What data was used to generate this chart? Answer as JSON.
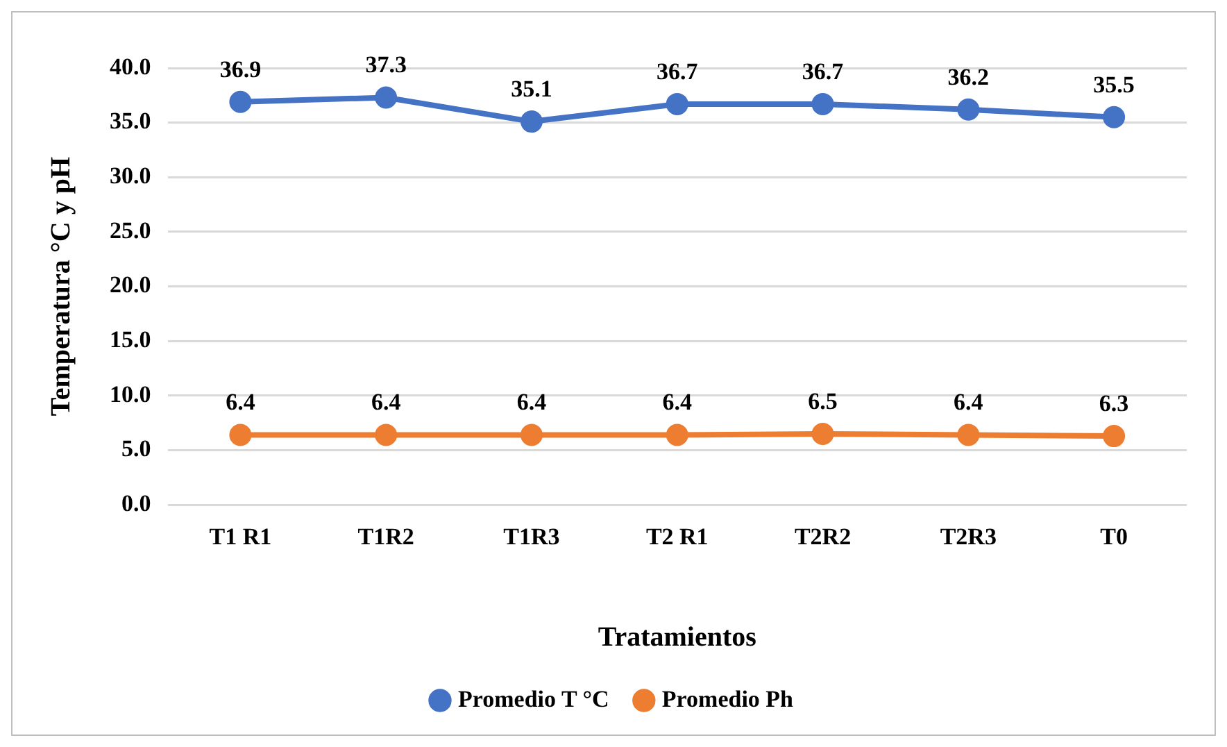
{
  "chart_data": {
    "type": "line",
    "xlabel": "Tratamientos",
    "ylabel": "Temperatura °C y pH",
    "categories": [
      "T1 R1",
      "T1R2",
      "T1R3",
      "T2 R1",
      "T2R2",
      "T2R3",
      "T0"
    ],
    "series": [
      {
        "name": "Promedio T °C",
        "color": "#4472c4",
        "values": [
          36.9,
          37.3,
          35.1,
          36.7,
          36.7,
          36.2,
          35.5
        ]
      },
      {
        "name": "Promedio Ph",
        "color": "#ed7d31",
        "values": [
          6.4,
          6.4,
          6.4,
          6.4,
          6.5,
          6.4,
          6.3
        ]
      }
    ],
    "ylim": [
      0,
      40
    ],
    "yticks": [
      {
        "value": 0,
        "label": "0.0"
      },
      {
        "value": 5,
        "label": "5.0"
      },
      {
        "value": 10,
        "label": "10.0"
      },
      {
        "value": 15,
        "label": "15.0"
      },
      {
        "value": 20,
        "label": "20.0"
      },
      {
        "value": 25,
        "label": "25.0"
      },
      {
        "value": 30,
        "label": "30.0"
      },
      {
        "value": 35,
        "label": "35.0"
      },
      {
        "value": 40,
        "label": "40.0"
      }
    ],
    "grid": "y",
    "legend": "bottom",
    "marker": "circle",
    "line_style": "solid",
    "data_labels": true
  }
}
